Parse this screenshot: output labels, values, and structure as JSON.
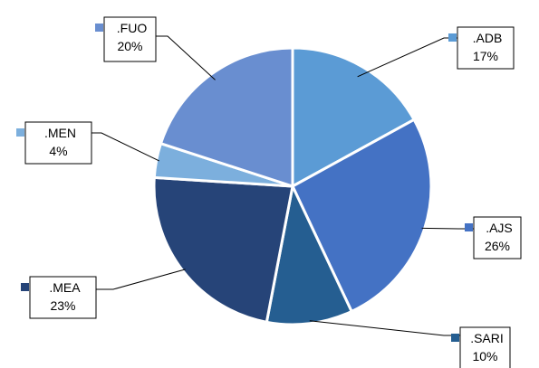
{
  "chart_data": {
    "type": "pie",
    "slices": [
      {
        "name": ".ADB",
        "value": 17,
        "label": "17%",
        "color": "#5B9BD5"
      },
      {
        "name": ".AJS",
        "value": 26,
        "label": "26%",
        "color": "#4472C4"
      },
      {
        "name": ".SARI",
        "value": 10,
        "label": "10%",
        "color": "#255E91"
      },
      {
        "name": ".MEA",
        "value": 23,
        "label": "23%",
        "color": "#264478"
      },
      {
        "name": ".MEN",
        "value": 4,
        "label": "4%",
        "color": "#7CAFDD"
      },
      {
        "name": ".FUO",
        "value": 20,
        "label": "20%",
        "color": "#698ED0"
      }
    ],
    "start_angle_deg": 0,
    "direction": "clockwise",
    "separator_color": "#FFFFFF",
    "label_style": "boxed callouts with leader lines and legend key"
  }
}
